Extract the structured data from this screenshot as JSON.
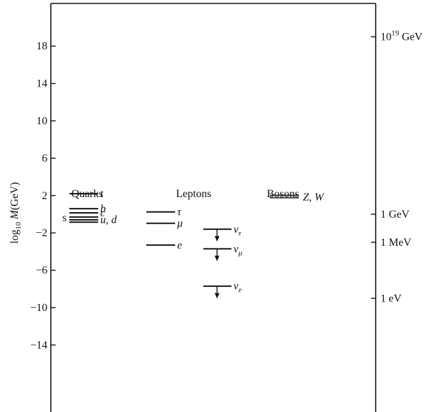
{
  "axis": {
    "ylabel_prefix": "log",
    "ylabel_sub": "10",
    "ylabel_var": "M",
    "ylabel_unit": "(GeV)",
    "left_ticks": [
      {
        "label": "18",
        "value": 18
      },
      {
        "label": "14",
        "value": 14
      },
      {
        "label": "10",
        "value": 10
      },
      {
        "label": "6",
        "value": 6
      },
      {
        "label": "2",
        "value": 2
      },
      {
        "label": "−2",
        "value": -2
      },
      {
        "label": "−6",
        "value": -6
      },
      {
        "label": "−10",
        "value": -10
      },
      {
        "label": "−14",
        "value": -14
      }
    ],
    "right_ticks": [
      {
        "label": "10",
        "sup": "19",
        "unit": " GeV",
        "value": 19
      },
      {
        "label": "1 GeV",
        "value": 0
      },
      {
        "label": "1 MeV",
        "value": -3
      },
      {
        "label": "1 eV",
        "value": -9
      }
    ]
  },
  "groups": {
    "quarks": "Quarks",
    "leptons": "Leptons",
    "bosons": "Bosons"
  },
  "quarks": [
    {
      "name": "t",
      "value": 2.2
    },
    {
      "name": "b",
      "value": 0.6
    },
    {
      "name": "c",
      "value": 0.15
    },
    {
      "name": "s",
      "value": -0.3
    },
    {
      "name": "u, d",
      "value": -0.6
    },
    {
      "name": "",
      "value": -0.85
    }
  ],
  "leptons": [
    {
      "name": "τ",
      "value": 0.25
    },
    {
      "name": "μ",
      "value": -0.97
    },
    {
      "name": "e",
      "value": -3.3
    }
  ],
  "neutrinos": [
    {
      "name": "ν",
      "sub": "τ",
      "value": -1.6
    },
    {
      "name": "ν",
      "sub": "μ",
      "value": -3.7
    },
    {
      "name": "ν",
      "sub": "e",
      "value": -7.7
    }
  ],
  "bosons": {
    "label": "Z, W",
    "value": 1.9
  }
}
